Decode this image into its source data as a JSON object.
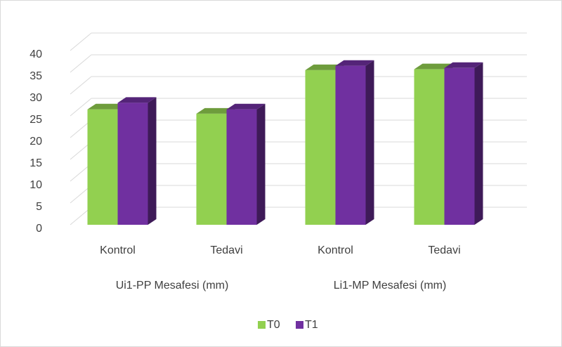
{
  "chart_data": {
    "type": "bar3d",
    "categories": [
      "Kontrol",
      "Tedavi",
      "Kontrol",
      "Tedavi"
    ],
    "group_labels": [
      "Ui1-PP Mesafesi (mm)",
      "Li1-MP Mesafesi (mm)"
    ],
    "series": [
      {
        "name": "T0",
        "color": "#92d050",
        "values": [
          26.5,
          25.5,
          35.5,
          35.7
        ]
      },
      {
        "name": "T1",
        "color": "#7030a0",
        "values": [
          28,
          26.5,
          36.5,
          36
        ]
      }
    ],
    "ylim": [
      0,
      40
    ],
    "yticks": [
      0,
      5,
      10,
      15,
      20,
      25,
      30,
      35,
      40
    ],
    "grid": true,
    "legend": "bottom"
  }
}
